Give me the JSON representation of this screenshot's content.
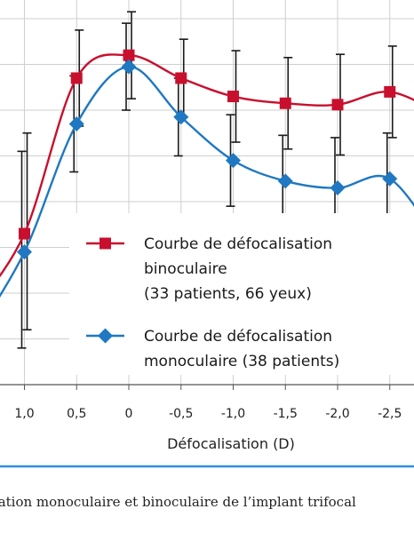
{
  "chart_data": {
    "type": "line",
    "title": "",
    "xlabel": "Défocalisation (D)",
    "ylabel": "",
    "x": [
      1.5,
      1.0,
      0.5,
      0,
      -0.5,
      -1.0,
      -1.5,
      -2.0,
      -2.5,
      -3.0
    ],
    "x_tick_labels": [
      "1,0",
      "0,5",
      "0",
      "-0,5",
      "-1,0",
      "-1,5",
      "-2,0",
      "-2,5"
    ],
    "x_tick_values": [
      1.0,
      0.5,
      0,
      -0.5,
      -1.0,
      -1.5,
      -2.0,
      -2.5
    ],
    "grid": true,
    "series": [
      {
        "name": "Courbe de défocalisation binoculaire (33 patients, 66 yeux)",
        "legend_lines": [
          "Courbe de défocalisation",
          "binoculaire",
          "(33 patients, 66 yeux)"
        ],
        "color": "#c8102e",
        "marker": "square",
        "values": [
          1.6,
          3.3,
          6.7,
          7.2,
          6.7,
          6.3,
          6.15,
          6.12,
          6.4,
          5.9
        ],
        "err_low": [
          null,
          2.1,
          1.05,
          0.95,
          0.85,
          1.0,
          1.0,
          1.1,
          1.0,
          null
        ],
        "err_high": [
          null,
          2.2,
          1.05,
          0.95,
          0.85,
          1.0,
          1.0,
          1.1,
          1.0,
          null
        ]
      },
      {
        "name": "Courbe de défocalisation monoculaire (38 patients)",
        "legend_lines": [
          "Courbe de défocalisation",
          "monoculaire (38 patients)"
        ],
        "color": "#1f78c1",
        "marker": "diamond",
        "values": [
          1.0,
          2.9,
          5.7,
          6.95,
          5.85,
          4.9,
          4.45,
          4.3,
          4.5,
          3.0
        ],
        "err_low": [
          null,
          2.1,
          1.05,
          0.95,
          0.85,
          1.0,
          1.0,
          1.1,
          1.0,
          null
        ],
        "err_high": [
          null,
          2.2,
          1.05,
          0.95,
          0.85,
          1.0,
          1.0,
          1.1,
          1.0,
          null
        ]
      }
    ],
    "legend_position": "lower-right"
  },
  "caption": "sation monoculaire et binoculaire de l’implant trifocal"
}
